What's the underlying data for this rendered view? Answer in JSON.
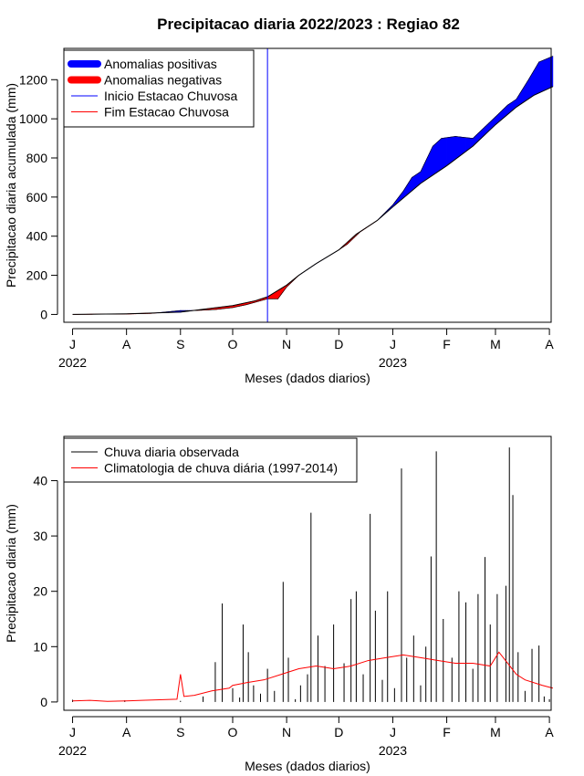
{
  "title": "Precipitacao diaria 2022/2023 : Regiao 82",
  "chart_data": [
    {
      "type": "area",
      "ylabel": "Precipitacao diaria acumulada (mm)",
      "xlabel": "Meses (dados diarios)",
      "x_unit": "days since 1 Jul 2022",
      "xlim": [
        -5,
        275
      ],
      "ylim": [
        -40,
        1360
      ],
      "y_ticks": [
        0,
        200,
        400,
        600,
        800,
        1000,
        1200
      ],
      "x_ticks": [
        {
          "label": "J",
          "day": 0
        },
        {
          "label": "A",
          "day": 31
        },
        {
          "label": "S",
          "day": 62
        },
        {
          "label": "O",
          "day": 92
        },
        {
          "label": "N",
          "day": 123
        },
        {
          "label": "D",
          "day": 153
        },
        {
          "label": "J",
          "day": 184
        },
        {
          "label": "F",
          "day": 215
        },
        {
          "label": "M",
          "day": 243
        },
        {
          "label": "A",
          "day": 274
        }
      ],
      "year_labels": [
        {
          "label": "2022",
          "day": 0
        },
        {
          "label": "2023",
          "day": 184
        }
      ],
      "rainy_season_start_day": 112,
      "climatology_cumulative": [
        [
          0,
          0
        ],
        [
          31,
          3
        ],
        [
          62,
          12
        ],
        [
          92,
          45
        ],
        [
          105,
          70
        ],
        [
          112,
          90
        ],
        [
          123,
          150
        ],
        [
          130,
          200
        ],
        [
          140,
          260
        ],
        [
          153,
          330
        ],
        [
          163,
          410
        ],
        [
          175,
          480
        ],
        [
          184,
          550
        ],
        [
          200,
          670
        ],
        [
          215,
          760
        ],
        [
          230,
          860
        ],
        [
          243,
          970
        ],
        [
          255,
          1060
        ],
        [
          265,
          1120
        ],
        [
          276,
          1165
        ]
      ],
      "observed_cumulative": [
        [
          0,
          0
        ],
        [
          31,
          2
        ],
        [
          45,
          5
        ],
        [
          62,
          20
        ],
        [
          70,
          20
        ],
        [
          82,
          25
        ],
        [
          92,
          35
        ],
        [
          100,
          50
        ],
        [
          112,
          80
        ],
        [
          118,
          80
        ],
        [
          123,
          140
        ],
        [
          130,
          200
        ],
        [
          140,
          260
        ],
        [
          153,
          330
        ],
        [
          158,
          360
        ],
        [
          165,
          420
        ],
        [
          175,
          480
        ],
        [
          184,
          560
        ],
        [
          190,
          630
        ],
        [
          195,
          700
        ],
        [
          200,
          730
        ],
        [
          207,
          860
        ],
        [
          212,
          900
        ],
        [
          220,
          910
        ],
        [
          230,
          900
        ],
        [
          243,
          1010
        ],
        [
          250,
          1070
        ],
        [
          255,
          1100
        ],
        [
          262,
          1200
        ],
        [
          268,
          1290
        ],
        [
          276,
          1320
        ]
      ],
      "legend": [
        {
          "label": "Anomalias positivas",
          "color": "#0000ff"
        },
        {
          "label": "Anomalias negativas",
          "color": "#ff0000"
        },
        {
          "label": "Inicio Estacao Chuvosa",
          "color": "#0000ff"
        },
        {
          "label": "Fim Estacao Chuvosa",
          "color": "#ff0000"
        }
      ],
      "legend_position": "top-left"
    },
    {
      "type": "bar",
      "ylabel": "Precipitacao diaria (mm)",
      "xlabel": "Meses (dados diarios)",
      "x_unit": "days since 1 Jul 2022",
      "xlim": [
        -5,
        275
      ],
      "ylim": [
        -1.5,
        48
      ],
      "y_ticks": [
        0,
        10,
        20,
        30,
        40
      ],
      "x_ticks": [
        {
          "label": "J",
          "day": 0
        },
        {
          "label": "A",
          "day": 31
        },
        {
          "label": "S",
          "day": 62
        },
        {
          "label": "O",
          "day": 92
        },
        {
          "label": "N",
          "day": 123
        },
        {
          "label": "D",
          "day": 153
        },
        {
          "label": "J",
          "day": 184
        },
        {
          "label": "F",
          "day": 215
        },
        {
          "label": "M",
          "day": 243
        },
        {
          "label": "A",
          "day": 274
        }
      ],
      "year_labels": [
        {
          "label": "2022",
          "day": 0
        },
        {
          "label": "2023",
          "day": 184
        }
      ],
      "observed_daily": [
        [
          0,
          0.4
        ],
        [
          30,
          0.3
        ],
        [
          62,
          0.2
        ],
        [
          75,
          1.0
        ],
        [
          82,
          7.2
        ],
        [
          86,
          17.8
        ],
        [
          92,
          2.5
        ],
        [
          96,
          0.8
        ],
        [
          98,
          14.0
        ],
        [
          101,
          9.0
        ],
        [
          104,
          3.0
        ],
        [
          108,
          1.5
        ],
        [
          112,
          6.0
        ],
        [
          116,
          2.0
        ],
        [
          121,
          21.7
        ],
        [
          124,
          8.0
        ],
        [
          128,
          0.5
        ],
        [
          131,
          3.0
        ],
        [
          135,
          5.0
        ],
        [
          137,
          34.2
        ],
        [
          141,
          12.0
        ],
        [
          145,
          6.5
        ],
        [
          150,
          14.0
        ],
        [
          156,
          7.0
        ],
        [
          160,
          18.6
        ],
        [
          163,
          20.0
        ],
        [
          167,
          5.0
        ],
        [
          171,
          34.0
        ],
        [
          174,
          16.5
        ],
        [
          178,
          4.0
        ],
        [
          181,
          20.0
        ],
        [
          185,
          2.5
        ],
        [
          189,
          42.2
        ],
        [
          192,
          8.0
        ],
        [
          196,
          12.0
        ],
        [
          200,
          3.0
        ],
        [
          203,
          10.0
        ],
        [
          206,
          26.3
        ],
        [
          209,
          45.3
        ],
        [
          213,
          15.0
        ],
        [
          218,
          8.0
        ],
        [
          222,
          20.0
        ],
        [
          226,
          18.0
        ],
        [
          230,
          6.0
        ],
        [
          233,
          19.5
        ],
        [
          237,
          26.2
        ],
        [
          240,
          14.0
        ],
        [
          244,
          19.5
        ],
        [
          249,
          21.0
        ],
        [
          251,
          46.0
        ],
        [
          253,
          37.4
        ],
        [
          256,
          9.0
        ],
        [
          260,
          2.0
        ],
        [
          264,
          9.6
        ],
        [
          268,
          10.2
        ],
        [
          271,
          1.0
        ],
        [
          274,
          0.5
        ]
      ],
      "climatology_daily": [
        [
          0,
          0.2
        ],
        [
          10,
          0.3
        ],
        [
          20,
          0.1
        ],
        [
          31,
          0.2
        ],
        [
          40,
          0.3
        ],
        [
          50,
          0.4
        ],
        [
          60,
          0.5
        ],
        [
          62,
          5.0
        ],
        [
          64,
          1.0
        ],
        [
          70,
          1.2
        ],
        [
          80,
          2.0
        ],
        [
          90,
          2.5
        ],
        [
          92,
          3.0
        ],
        [
          100,
          3.5
        ],
        [
          110,
          4.0
        ],
        [
          120,
          5.0
        ],
        [
          130,
          6.0
        ],
        [
          140,
          6.5
        ],
        [
          150,
          6.0
        ],
        [
          160,
          6.5
        ],
        [
          170,
          7.5
        ],
        [
          180,
          8.0
        ],
        [
          190,
          8.5
        ],
        [
          200,
          8.0
        ],
        [
          210,
          7.5
        ],
        [
          220,
          7.0
        ],
        [
          230,
          7.0
        ],
        [
          240,
          6.5
        ],
        [
          245,
          9.0
        ],
        [
          250,
          7.0
        ],
        [
          255,
          5.0
        ],
        [
          260,
          4.0
        ],
        [
          270,
          3.0
        ],
        [
          276,
          2.5
        ]
      ],
      "legend": [
        {
          "label": "Chuva diaria observada",
          "color": "#000000"
        },
        {
          "label": "Climatologia de chuva diária (1997-2014)",
          "color": "#ff0000"
        }
      ],
      "legend_position": "top-left"
    }
  ]
}
